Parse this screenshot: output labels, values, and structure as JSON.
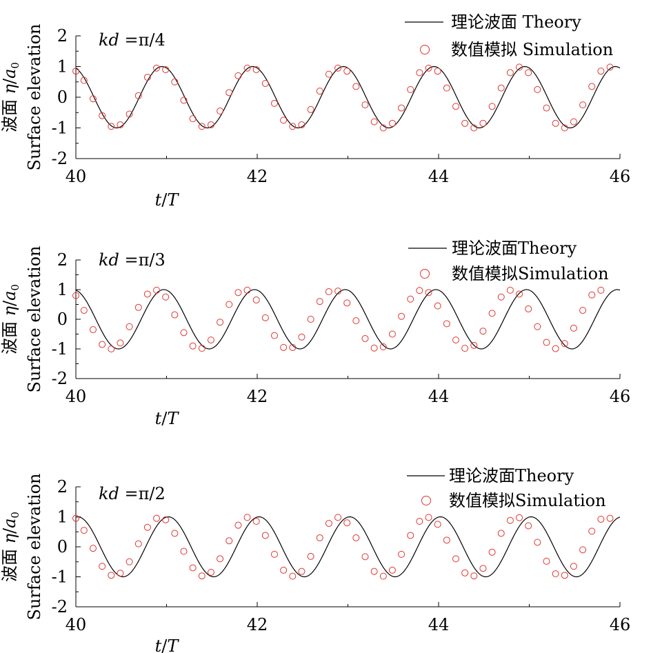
{
  "chart_data": [
    {
      "type": "line",
      "annotation": {
        "prefix": "kd",
        "eq": " =π/4"
      },
      "xlabel": {
        "a": "t",
        "sep": "/",
        "b": "T"
      },
      "ylabel_line1": {
        "zh": "波面",
        "eta": "η",
        "sep": "/",
        "a": "a",
        "sub": "0"
      },
      "ylabel_line2": "Surface elevation",
      "xlim": [
        40,
        46
      ],
      "ylim": [
        -2,
        2
      ],
      "xticks": [
        "40",
        "42",
        "44",
        "46"
      ],
      "yticks": [
        "2",
        "1",
        "0",
        "-1",
        "-2"
      ],
      "legend": [
        "理论波面 Theory",
        "数值模拟 Simulation"
      ],
      "series": [
        {
          "kind": "theory",
          "amplitude": 1,
          "period": 1,
          "phase_x": 40.95
        },
        {
          "kind": "simulation",
          "points": [
            [
              40.0,
              0.85
            ],
            [
              40.09,
              0.55
            ],
            [
              40.19,
              -0.05
            ],
            [
              40.29,
              -0.6
            ],
            [
              40.39,
              -0.95
            ],
            [
              40.49,
              -0.9
            ],
            [
              40.59,
              -0.55
            ],
            [
              40.69,
              0.05
            ],
            [
              40.79,
              0.65
            ],
            [
              40.89,
              0.95
            ],
            [
              40.99,
              0.9
            ],
            [
              41.09,
              0.5
            ],
            [
              41.19,
              -0.1
            ],
            [
              41.29,
              -0.7
            ],
            [
              41.39,
              -0.95
            ],
            [
              41.49,
              -0.9
            ],
            [
              41.59,
              -0.45
            ],
            [
              41.69,
              0.15
            ],
            [
              41.79,
              0.7
            ],
            [
              41.89,
              0.95
            ],
            [
              41.99,
              0.9
            ],
            [
              42.09,
              0.45
            ],
            [
              42.19,
              -0.2
            ],
            [
              42.29,
              -0.75
            ],
            [
              42.39,
              -0.95
            ],
            [
              42.49,
              -0.9
            ],
            [
              42.59,
              -0.4
            ],
            [
              42.69,
              0.2
            ],
            [
              42.79,
              0.75
            ],
            [
              42.89,
              0.95
            ],
            [
              42.99,
              0.85
            ],
            [
              43.09,
              0.35
            ],
            [
              43.19,
              -0.25
            ],
            [
              43.29,
              -0.8
            ],
            [
              43.39,
              -1.0
            ],
            [
              43.49,
              -0.85
            ],
            [
              43.59,
              -0.35
            ],
            [
              43.69,
              0.25
            ],
            [
              43.79,
              0.8
            ],
            [
              43.89,
              0.95
            ],
            [
              43.99,
              0.85
            ],
            [
              44.09,
              0.3
            ],
            [
              44.19,
              -0.3
            ],
            [
              44.29,
              -0.85
            ],
            [
              44.39,
              -1.0
            ],
            [
              44.49,
              -0.85
            ],
            [
              44.59,
              -0.3
            ],
            [
              44.69,
              0.3
            ],
            [
              44.79,
              0.8
            ],
            [
              44.89,
              0.98
            ],
            [
              44.99,
              0.8
            ],
            [
              45.09,
              0.25
            ],
            [
              45.19,
              -0.35
            ],
            [
              45.29,
              -0.85
            ],
            [
              45.39,
              -1.0
            ],
            [
              45.49,
              -0.8
            ],
            [
              45.59,
              -0.25
            ],
            [
              45.69,
              0.35
            ],
            [
              45.79,
              0.85
            ],
            [
              45.89,
              0.98
            ]
          ]
        }
      ]
    },
    {
      "type": "line",
      "annotation": {
        "prefix": "kd",
        "eq": " =π/3"
      },
      "xlabel": {
        "a": "t",
        "sep": "/",
        "b": "T"
      },
      "ylabel_line1": {
        "zh": "波面",
        "eta": "η",
        "sep": "/",
        "a": "a",
        "sub": "0"
      },
      "ylabel_line2": "Surface elevation",
      "xlim": [
        40,
        46
      ],
      "ylim": [
        -2,
        2
      ],
      "xticks": [
        "40",
        "42",
        "44",
        "46"
      ],
      "yticks": [
        "2",
        "1",
        "0",
        "-1",
        "-2"
      ],
      "legend": [
        "理论波面Theory",
        "数值模拟Simulation"
      ],
      "series": [
        {
          "kind": "theory",
          "amplitude": 1,
          "period": 1,
          "phase_x": 40.97
        },
        {
          "kind": "simulation",
          "points": [
            [
              40.0,
              0.8
            ],
            [
              40.09,
              0.3
            ],
            [
              40.19,
              -0.35
            ],
            [
              40.29,
              -0.85
            ],
            [
              40.39,
              -1.0
            ],
            [
              40.49,
              -0.8
            ],
            [
              40.59,
              -0.25
            ],
            [
              40.69,
              0.4
            ],
            [
              40.79,
              0.85
            ],
            [
              40.89,
              0.98
            ],
            [
              40.99,
              0.75
            ],
            [
              41.09,
              0.15
            ],
            [
              41.19,
              -0.45
            ],
            [
              41.29,
              -0.9
            ],
            [
              41.39,
              -0.98
            ],
            [
              41.49,
              -0.7
            ],
            [
              41.59,
              -0.1
            ],
            [
              41.69,
              0.5
            ],
            [
              41.79,
              0.9
            ],
            [
              41.89,
              0.98
            ],
            [
              41.99,
              0.65
            ],
            [
              42.09,
              0.05
            ],
            [
              42.19,
              -0.55
            ],
            [
              42.29,
              -0.95
            ],
            [
              42.39,
              -0.95
            ],
            [
              42.49,
              -0.6
            ],
            [
              42.59,
              0.0
            ],
            [
              42.69,
              0.6
            ],
            [
              42.79,
              0.93
            ],
            [
              42.89,
              0.95
            ],
            [
              42.99,
              0.55
            ],
            [
              43.09,
              -0.05
            ],
            [
              43.19,
              -0.65
            ],
            [
              43.29,
              -0.97
            ],
            [
              43.39,
              -0.93
            ],
            [
              43.49,
              -0.5
            ],
            [
              43.59,
              0.1
            ],
            [
              43.69,
              0.68
            ],
            [
              43.79,
              0.97
            ],
            [
              43.89,
              0.9
            ],
            [
              43.99,
              0.45
            ],
            [
              44.09,
              -0.15
            ],
            [
              44.19,
              -0.7
            ],
            [
              44.29,
              -0.98
            ],
            [
              44.39,
              -0.88
            ],
            [
              44.49,
              -0.4
            ],
            [
              44.59,
              0.2
            ],
            [
              44.69,
              0.75
            ],
            [
              44.79,
              0.98
            ],
            [
              44.89,
              0.85
            ],
            [
              44.99,
              0.35
            ],
            [
              45.09,
              -0.25
            ],
            [
              45.19,
              -0.78
            ],
            [
              45.29,
              -0.99
            ],
            [
              45.39,
              -0.82
            ],
            [
              45.49,
              -0.3
            ],
            [
              45.59,
              0.3
            ],
            [
              45.69,
              0.82
            ],
            [
              45.79,
              0.98
            ]
          ]
        }
      ]
    },
    {
      "type": "line",
      "annotation": {
        "prefix": "kd",
        "eq": " =π/2"
      },
      "xlabel": {
        "a": "t",
        "sep": "/",
        "b": "T"
      },
      "ylabel_line1": {
        "zh": "波面",
        "eta": "η",
        "sep": "/",
        "a": "a",
        "sub": "0"
      },
      "ylabel_line2": "Surface elevation",
      "xlim": [
        40,
        46
      ],
      "ylim": [
        -2,
        2
      ],
      "xticks": [
        "40",
        "42",
        "44",
        "46"
      ],
      "yticks": [
        "2",
        "1",
        "0",
        "-1",
        "-2"
      ],
      "legend": [
        "理论波面Theory",
        "数值模拟Simulation"
      ],
      "series": [
        {
          "kind": "theory",
          "amplitude": 1,
          "period": 1,
          "phase_x": 41.02
        },
        {
          "kind": "simulation",
          "points": [
            [
              40.0,
              0.95
            ],
            [
              40.09,
              0.55
            ],
            [
              40.19,
              -0.05
            ],
            [
              40.29,
              -0.65
            ],
            [
              40.39,
              -0.95
            ],
            [
              40.49,
              -0.88
            ],
            [
              40.59,
              -0.5
            ],
            [
              40.69,
              0.1
            ],
            [
              40.79,
              0.65
            ],
            [
              40.89,
              0.95
            ],
            [
              40.99,
              0.9
            ],
            [
              41.09,
              0.45
            ],
            [
              41.19,
              -0.15
            ],
            [
              41.29,
              -0.7
            ],
            [
              41.39,
              -0.97
            ],
            [
              41.49,
              -0.85
            ],
            [
              41.59,
              -0.4
            ],
            [
              41.69,
              0.2
            ],
            [
              41.79,
              0.72
            ],
            [
              41.89,
              0.98
            ],
            [
              41.99,
              0.85
            ],
            [
              42.09,
              0.38
            ],
            [
              42.19,
              -0.25
            ],
            [
              42.29,
              -0.78
            ],
            [
              42.39,
              -0.98
            ],
            [
              42.49,
              -0.82
            ],
            [
              42.59,
              -0.32
            ],
            [
              42.69,
              0.3
            ],
            [
              42.79,
              0.78
            ],
            [
              42.89,
              0.98
            ],
            [
              42.99,
              0.8
            ],
            [
              43.09,
              0.3
            ],
            [
              43.19,
              -0.33
            ],
            [
              43.29,
              -0.82
            ],
            [
              43.39,
              -0.98
            ],
            [
              43.49,
              -0.78
            ],
            [
              43.59,
              -0.25
            ],
            [
              43.69,
              0.38
            ],
            [
              43.79,
              0.85
            ],
            [
              43.89,
              0.98
            ],
            [
              43.99,
              0.75
            ],
            [
              44.09,
              0.22
            ],
            [
              44.19,
              -0.4
            ],
            [
              44.29,
              -0.87
            ],
            [
              44.39,
              -0.97
            ],
            [
              44.49,
              -0.72
            ],
            [
              44.59,
              -0.18
            ],
            [
              44.69,
              0.45
            ],
            [
              44.79,
              0.88
            ],
            [
              44.89,
              0.97
            ],
            [
              44.99,
              0.7
            ],
            [
              45.09,
              0.15
            ],
            [
              45.19,
              -0.48
            ],
            [
              45.29,
              -0.9
            ],
            [
              45.39,
              -0.95
            ],
            [
              45.49,
              -0.65
            ],
            [
              45.59,
              -0.1
            ],
            [
              45.69,
              0.52
            ],
            [
              45.79,
              0.92
            ],
            [
              45.89,
              0.95
            ]
          ]
        }
      ]
    }
  ]
}
